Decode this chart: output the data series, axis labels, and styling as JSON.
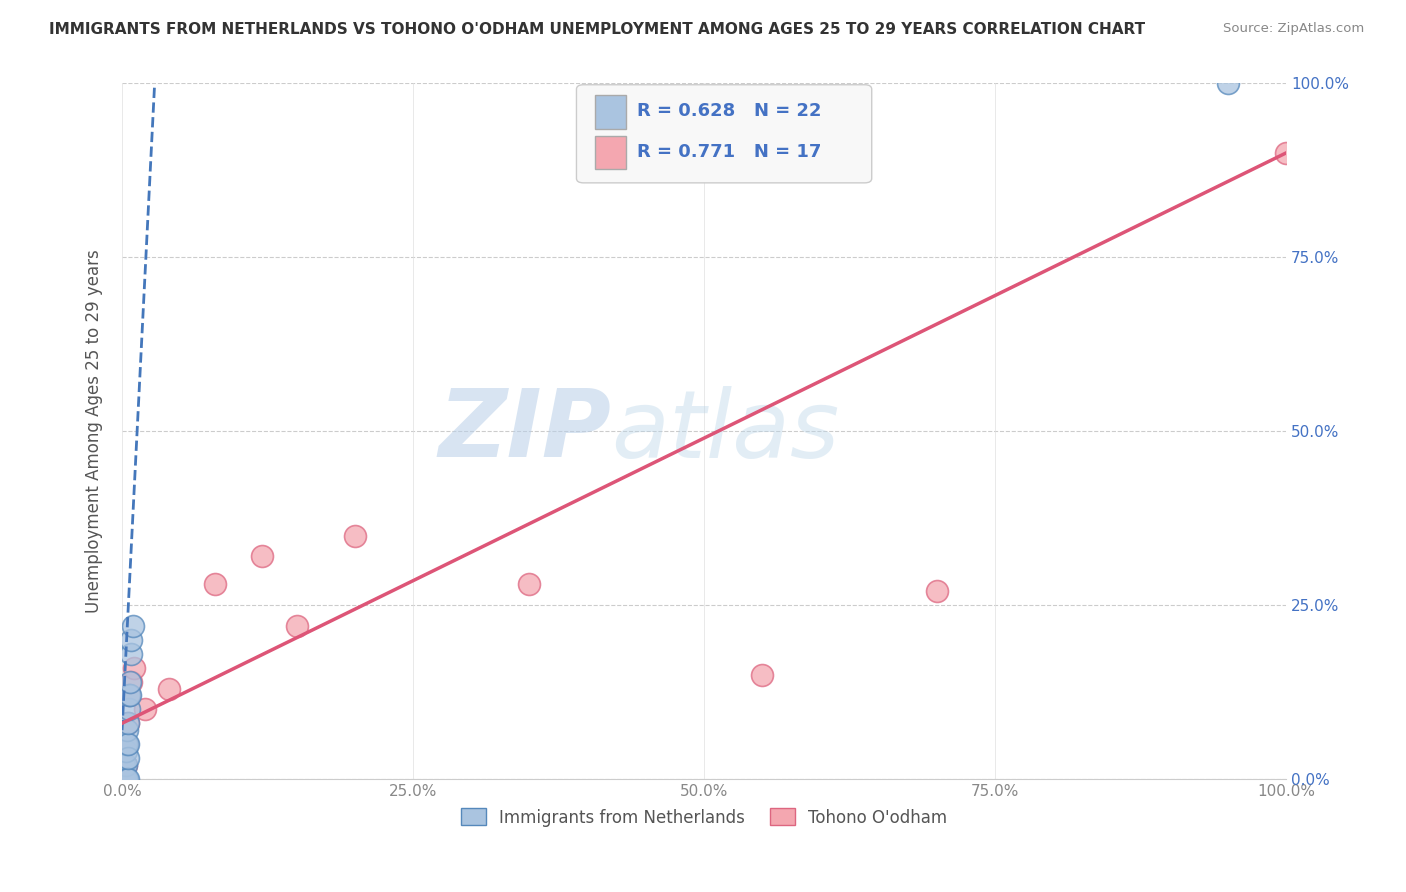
{
  "title": "IMMIGRANTS FROM NETHERLANDS VS TOHONO O'ODHAM UNEMPLOYMENT AMONG AGES 25 TO 29 YEARS CORRELATION CHART",
  "source": "Source: ZipAtlas.com",
  "ylabel": "Unemployment Among Ages 25 to 29 years",
  "xlim": [
    0,
    1.0
  ],
  "ylim": [
    0,
    1.0
  ],
  "ticks": [
    0,
    0.25,
    0.5,
    0.75,
    1.0
  ],
  "ticklabels": [
    "0.0%",
    "25.0%",
    "50.0%",
    "75.0%",
    "100.0%"
  ],
  "blue_R": 0.628,
  "blue_N": 22,
  "pink_R": 0.771,
  "pink_N": 17,
  "blue_color": "#aac4e0",
  "pink_color": "#f4a7b0",
  "blue_edge_color": "#5588bb",
  "pink_edge_color": "#dd6680",
  "blue_line_color": "#4477bb",
  "pink_line_color": "#dd5577",
  "legend_label_blue": "Immigrants from Netherlands",
  "legend_label_pink": "Tohono O'odham",
  "watermark_zip": "ZIP",
  "watermark_atlas": "atlas",
  "blue_scatter_x": [
    0.002,
    0.002,
    0.002,
    0.003,
    0.003,
    0.003,
    0.003,
    0.004,
    0.004,
    0.004,
    0.005,
    0.005,
    0.005,
    0.005,
    0.006,
    0.006,
    0.007,
    0.007,
    0.008,
    0.008,
    0.009,
    0.95
  ],
  "blue_scatter_y": [
    0.0,
    0.0,
    0.02,
    0.0,
    0.02,
    0.04,
    0.05,
    0.0,
    0.05,
    0.07,
    0.0,
    0.03,
    0.05,
    0.08,
    0.1,
    0.12,
    0.12,
    0.14,
    0.18,
    0.2,
    0.22,
    1.0
  ],
  "pink_scatter_x": [
    0.002,
    0.003,
    0.004,
    0.005,
    0.006,
    0.008,
    0.01,
    0.02,
    0.04,
    0.08,
    0.12,
    0.15,
    0.2,
    0.35,
    0.55,
    0.7,
    1.0
  ],
  "pink_scatter_y": [
    0.0,
    0.02,
    0.05,
    0.08,
    0.12,
    0.14,
    0.16,
    0.1,
    0.13,
    0.28,
    0.32,
    0.22,
    0.35,
    0.28,
    0.15,
    0.27,
    0.9
  ],
  "blue_trendline_x": [
    0.0,
    0.028
  ],
  "blue_trendline_y": [
    0.07,
    1.0
  ],
  "pink_trendline_x": [
    0.0,
    1.0
  ],
  "pink_trendline_y": [
    0.08,
    0.9
  ],
  "background_color": "#ffffff",
  "grid_color": "#cccccc",
  "right_tick_color": "#4472c4",
  "title_color": "#333333",
  "R_label_color": "#4472c4"
}
